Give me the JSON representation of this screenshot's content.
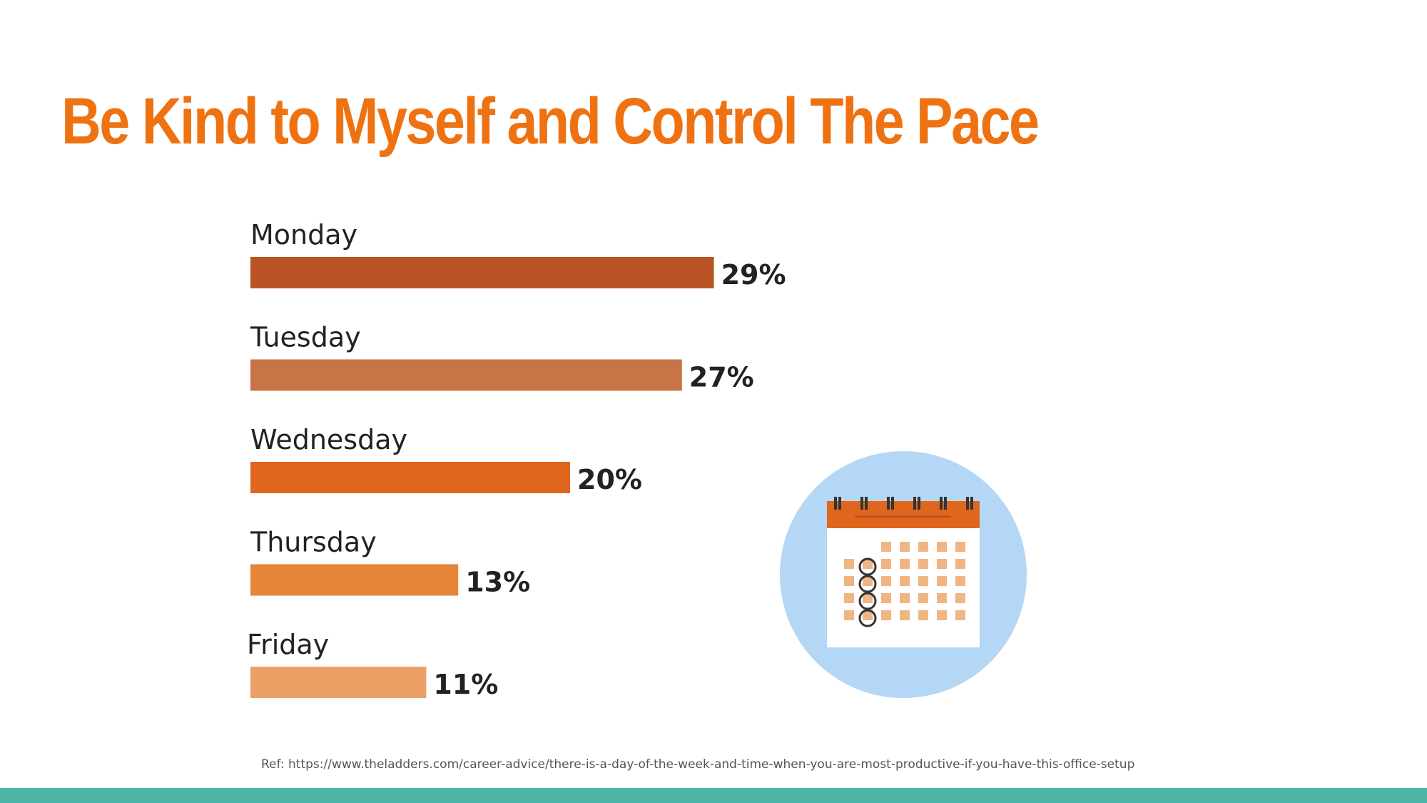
{
  "slide": {
    "title": "Be Kind to Myself and Control The Pace",
    "reference": "Ref: https://www.theladders.com/career-advice/there-is-a-day-of-the-week-and-time-when-you-are-most-productive-if-you-have-this-office-setup"
  },
  "colors": {
    "title": "#ef7212",
    "bottom_bar": "#4db6a8",
    "calendar_circle": "#b3d7f5"
  },
  "chart_data": {
    "type": "bar",
    "orientation": "horizontal",
    "title": "",
    "xlabel": "",
    "ylabel": "",
    "categories": [
      "Monday",
      "Tuesday",
      "Wednesday",
      "Thursday",
      "Friday"
    ],
    "values": [
      29,
      27,
      20,
      13,
      11
    ],
    "value_labels": [
      "29%",
      "27%",
      "20%",
      "13%",
      "11%"
    ],
    "unit": "%",
    "bar_colors": [
      "#b95324",
      "#c87446",
      "#e0661e",
      "#e4853a",
      "#eda066"
    ],
    "grid": false,
    "legend": "none"
  },
  "illustration": {
    "icon": "calendar-icon"
  }
}
